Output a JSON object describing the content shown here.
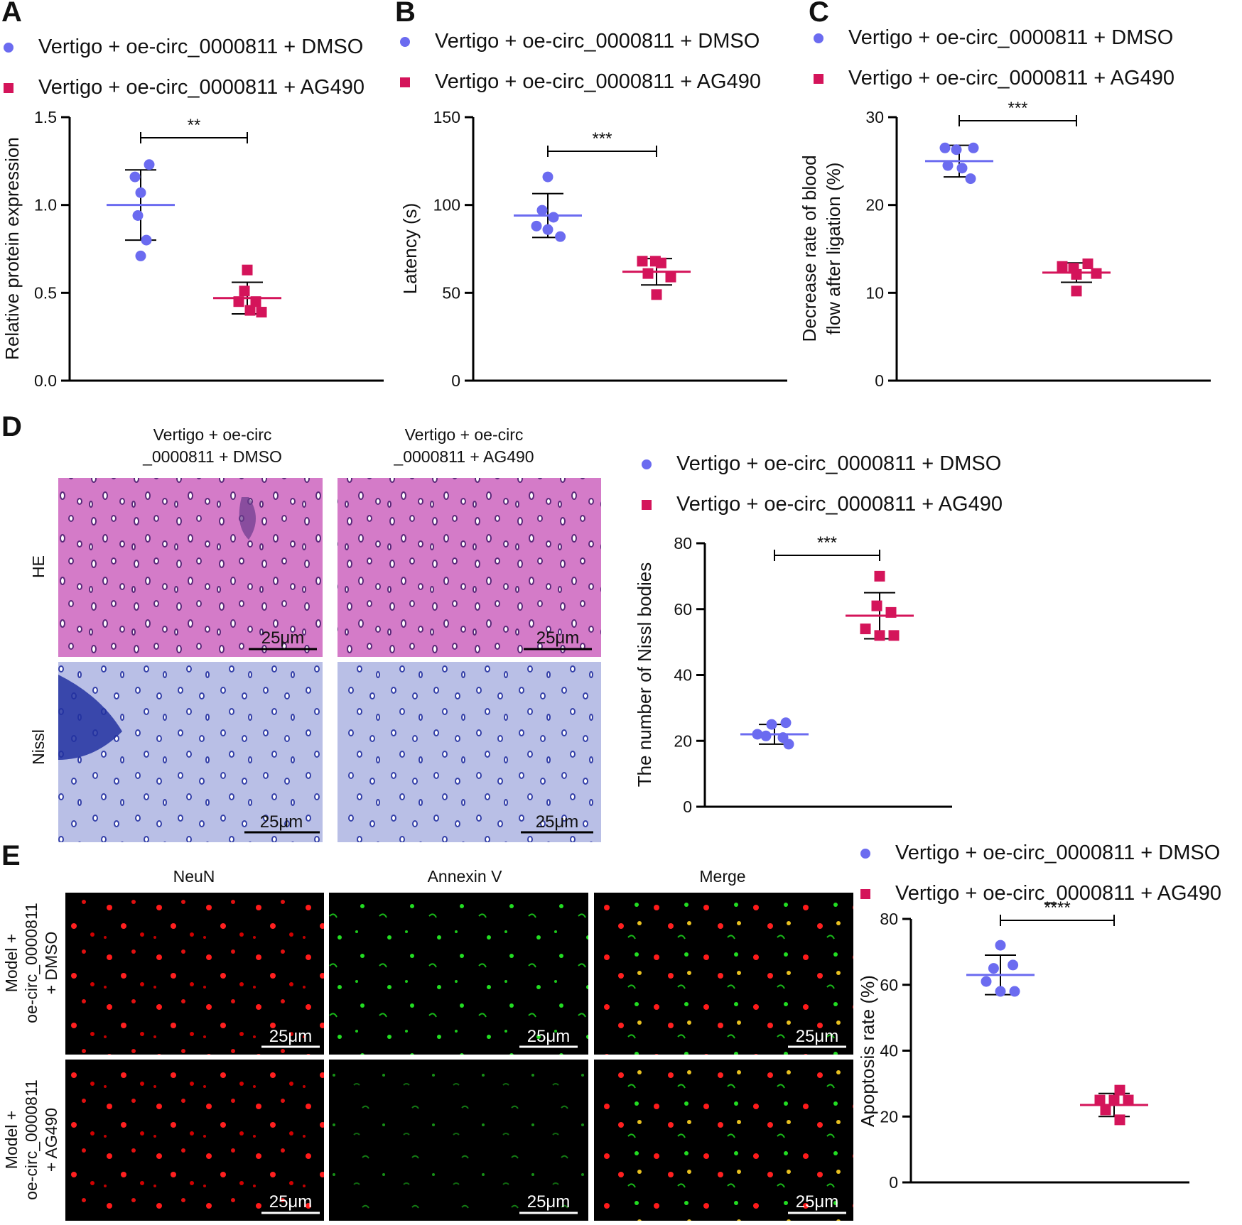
{
  "colors": {
    "dmso": "#6B6BF0",
    "ag490": "#D4145A",
    "axis": "#000000",
    "text": "#111111"
  },
  "icons": {
    "dmso_marker": "circle-marker-icon",
    "ag490_marker": "square-marker-icon"
  },
  "legend": {
    "dmso": "Vertigo + oe-circ_0000811 + DMSO",
    "ag490": "Vertigo + oe-circ_0000811 + AG490"
  },
  "chart_data": [
    {
      "panel": "A",
      "type": "scatter",
      "ylabel": "Relative protein expression",
      "ylim": [
        0,
        1.5
      ],
      "yticks": [
        "0.0",
        "0.5",
        "1.0",
        "1.5"
      ],
      "yticks_values": [
        0,
        0.5,
        1.0,
        1.5
      ],
      "significance": "**",
      "series": [
        {
          "name": "Vertigo + oe-circ_0000811 + DMSO",
          "marker": "circle",
          "mean": 1.0,
          "sd": 0.2,
          "points": [
            [
              0.15,
              1.23
            ],
            [
              -0.1,
              1.16
            ],
            [
              0.0,
              1.07
            ],
            [
              -0.05,
              0.94
            ],
            [
              0.1,
              0.8
            ],
            [
              0.0,
              0.71
            ]
          ]
        },
        {
          "name": "Vertigo + oe-circ_0000811 + AG490",
          "marker": "square",
          "mean": 0.47,
          "sd": 0.09,
          "points": [
            [
              0.0,
              0.63
            ],
            [
              -0.05,
              0.51
            ],
            [
              -0.15,
              0.45
            ],
            [
              0.15,
              0.45
            ],
            [
              0.05,
              0.4
            ],
            [
              0.25,
              0.39
            ]
          ]
        }
      ]
    },
    {
      "panel": "B",
      "type": "scatter",
      "ylabel": "Latency (s)",
      "ylim": [
        0,
        150
      ],
      "yticks": [
        "0",
        "50",
        "100",
        "150"
      ],
      "yticks_values": [
        0,
        50,
        100,
        150
      ],
      "significance": "***",
      "series": [
        {
          "name": "Vertigo + oe-circ_0000811 + DMSO",
          "marker": "circle",
          "mean": 94,
          "sd": 12.5,
          "points": [
            [
              0.0,
              116
            ],
            [
              -0.1,
              97
            ],
            [
              0.1,
              93
            ],
            [
              -0.2,
              88
            ],
            [
              0.0,
              86
            ],
            [
              0.22,
              82
            ]
          ]
        },
        {
          "name": "Vertigo + oe-circ_0000811 + AG490",
          "marker": "square",
          "mean": 62,
          "sd": 7.5,
          "points": [
            [
              -0.25,
              68
            ],
            [
              -0.02,
              68
            ],
            [
              0.08,
              67
            ],
            [
              -0.15,
              61
            ],
            [
              0.25,
              59
            ],
            [
              0.0,
              49
            ]
          ]
        }
      ]
    },
    {
      "panel": "C",
      "type": "scatter",
      "ylabel": "Decrease rate of blood flow after ligation (%)",
      "ylabel_lines": [
        "Decrease rate of blood",
        "flow after ligation (%)"
      ],
      "ylim": [
        0,
        30
      ],
      "yticks": [
        "0",
        "10",
        "20",
        "30"
      ],
      "yticks_values": [
        0,
        10,
        20,
        30
      ],
      "significance": "***",
      "series": [
        {
          "name": "Vertigo + oe-circ_0000811 + DMSO",
          "marker": "circle",
          "mean": 25,
          "sd": 1.8,
          "points": [
            [
              -0.25,
              26.5
            ],
            [
              -0.05,
              26.3
            ],
            [
              0.25,
              26.5
            ],
            [
              -0.2,
              24.5
            ],
            [
              0.05,
              24.2
            ],
            [
              0.2,
              23.0
            ]
          ]
        },
        {
          "name": "Vertigo + oe-circ_0000811 + AG490",
          "marker": "square",
          "mean": 12.3,
          "sd": 1.1,
          "points": [
            [
              -0.25,
              13.0
            ],
            [
              -0.05,
              12.8
            ],
            [
              0.2,
              13.3
            ],
            [
              0.0,
              12.1
            ],
            [
              0.35,
              12.2
            ],
            [
              0.0,
              10.2
            ]
          ]
        }
      ]
    },
    {
      "panel": "D",
      "type": "scatter",
      "ylabel": "The number of Nissl bodies",
      "ylim": [
        0,
        80
      ],
      "yticks": [
        "0",
        "20",
        "40",
        "60",
        "80"
      ],
      "yticks_values": [
        0,
        20,
        40,
        60,
        80
      ],
      "significance": "***",
      "series": [
        {
          "name": "Vertigo + oe-circ_0000811 + DMSO",
          "marker": "circle",
          "mean": 22,
          "sd": 3,
          "points": [
            [
              -0.3,
              22
            ],
            [
              -0.05,
              25
            ],
            [
              0.2,
              25.5
            ],
            [
              -0.15,
              21.5
            ],
            [
              0.15,
              21
            ],
            [
              0.25,
              19
            ]
          ]
        },
        {
          "name": "Vertigo + oe-circ_0000811 + AG490",
          "marker": "square",
          "mean": 58,
          "sd": 7,
          "points": [
            [
              0.0,
              70
            ],
            [
              -0.05,
              61
            ],
            [
              0.2,
              59
            ],
            [
              -0.25,
              54
            ],
            [
              0.0,
              52
            ],
            [
              0.25,
              52
            ]
          ]
        }
      ]
    },
    {
      "panel": "E",
      "type": "scatter",
      "ylabel": "Apoptosis rate (%)",
      "ylim": [
        0,
        80
      ],
      "yticks": [
        "0",
        "20",
        "40",
        "60",
        "80"
      ],
      "yticks_values": [
        0,
        20,
        40,
        60,
        80
      ],
      "significance": "****",
      "series": [
        {
          "name": "Vertigo + oe-circ_0000811 + DMSO",
          "marker": "circle",
          "mean": 63,
          "sd": 6,
          "points": [
            [
              0.0,
              72
            ],
            [
              -0.12,
              65
            ],
            [
              0.22,
              66
            ],
            [
              -0.25,
              61
            ],
            [
              0.0,
              58
            ],
            [
              0.25,
              58
            ]
          ]
        },
        {
          "name": "Vertigo + oe-circ_0000811 + AG490",
          "marker": "square",
          "mean": 23.5,
          "sd": 3.5,
          "points": [
            [
              0.1,
              28
            ],
            [
              -0.25,
              25
            ],
            [
              0.0,
              25
            ],
            [
              0.25,
              25
            ],
            [
              -0.15,
              22
            ],
            [
              0.1,
              19
            ]
          ]
        }
      ]
    }
  ],
  "panel_d": {
    "letter": "D",
    "col_heads": [
      [
        "Vertigo + oe-circ",
        "_0000811 + DMSO"
      ],
      [
        "Vertigo + oe-circ",
        "_0000811 + AG490"
      ]
    ],
    "row_heads": [
      "HE",
      "Nissl"
    ],
    "scalebar": "25μm"
  },
  "panel_e": {
    "letter": "E",
    "col_heads": [
      "NeuN",
      "Annexin V",
      "Merge"
    ],
    "row_heads": [
      [
        "Model +",
        "oe-circ_0000811",
        "+ DMSO"
      ],
      [
        "Model +",
        "oe-circ_0000811",
        "+ AG490"
      ]
    ],
    "scalebar": "25μm"
  },
  "panel_letters": [
    "A",
    "B",
    "C"
  ]
}
